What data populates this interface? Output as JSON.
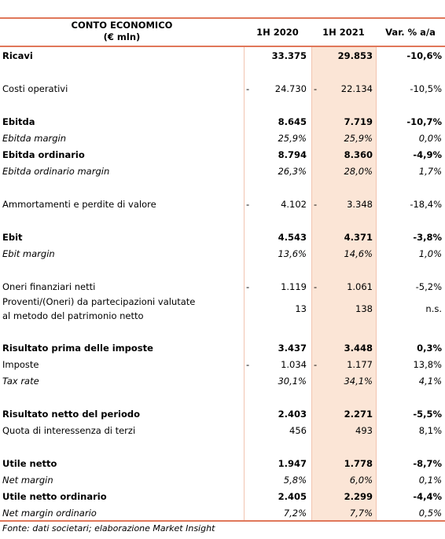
{
  "header": {
    "title_line1": "CONTO ECONOMICO",
    "title_line2": "(€ mln)",
    "col1": "1H 2020",
    "col2": "1H 2021",
    "col3": "Var. % a/a"
  },
  "rows": [
    {
      "label": "Ricavi",
      "v2020": "33.375",
      "v2021": "29.853",
      "var": "-10,6%",
      "style": "bold"
    },
    {
      "label": "Costi operativi",
      "s2020": "-",
      "v2020": "24.730",
      "s2021": "-",
      "v2021": "22.134",
      "var": "-10,5%",
      "style": "normal",
      "space_before": true
    },
    {
      "label": "Ebitda",
      "v2020": "8.645",
      "v2021": "7.719",
      "var": "-10,7%",
      "style": "bold",
      "space_before": true
    },
    {
      "label": "Ebitda margin",
      "v2020": "25,9%",
      "v2021": "25,9%",
      "var": "0,0%",
      "style": "italic"
    },
    {
      "label": "Ebitda ordinario",
      "v2020": "8.794",
      "v2021": "8.360",
      "var": "-4,9%",
      "style": "bold"
    },
    {
      "label": "Ebitda ordinario margin",
      "v2020": "26,3%",
      "v2021": "28,0%",
      "var": "1,7%",
      "style": "italic"
    },
    {
      "label": "Ammortamenti e perdite di valore",
      "s2020": "-",
      "v2020": "4.102",
      "s2021": "-",
      "v2021": "3.348",
      "var": "-18,4%",
      "style": "normal",
      "space_before": true
    },
    {
      "label": "Ebit",
      "v2020": "4.543",
      "v2021": "4.371",
      "var": "-3,8%",
      "style": "bold",
      "space_before": true
    },
    {
      "label": "Ebit margin",
      "v2020": "13,6%",
      "v2021": "14,6%",
      "var": "1,0%",
      "style": "italic"
    },
    {
      "label": "Oneri finanziari netti",
      "s2020": "-",
      "v2020": "1.119",
      "s2021": "-",
      "v2021": "1.061",
      "var": "-5,2%",
      "style": "normal",
      "space_before": true
    },
    {
      "label": "Proventi/(Oneri) da partecipazioni valutate",
      "label2": "al metodo del patrimonio netto",
      "v2020": "13",
      "v2021": "138",
      "var": "n.s.",
      "style": "normal"
    },
    {
      "label": "Risultato prima delle imposte",
      "v2020": "3.437",
      "v2021": "3.448",
      "var": "0,3%",
      "style": "bold",
      "space_before": true
    },
    {
      "label": "Imposte",
      "s2020": "-",
      "v2020": "1.034",
      "s2021": "-",
      "v2021": "1.177",
      "var": "13,8%",
      "style": "normal"
    },
    {
      "label": "Tax rate",
      "v2020": "30,1%",
      "v2021": "34,1%",
      "var": "4,1%",
      "style": "italic"
    },
    {
      "label": "Risultato netto del periodo",
      "v2020": "2.403",
      "v2021": "2.271",
      "var": "-5,5%",
      "style": "bold",
      "space_before": true
    },
    {
      "label": "Quota di interessenza di terzi",
      "v2020": "456",
      "v2021": "493",
      "var": "8,1%",
      "style": "normal"
    },
    {
      "label": "Utile netto",
      "v2020": "1.947",
      "v2021": "1.778",
      "var": "-8,7%",
      "style": "bold",
      "space_before": true
    },
    {
      "label": "Net margin",
      "v2020": "5,8%",
      "v2021": "6,0%",
      "var": "0,1%",
      "style": "italic"
    },
    {
      "label": "Utile netto ordinario",
      "v2020": "2.405",
      "v2021": "2.299",
      "var": "-4,4%",
      "style": "bold"
    },
    {
      "label": "Net margin ordinario",
      "v2020": "7,2%",
      "v2021": "7,7%",
      "var": "0,5%",
      "style": "italic"
    }
  ],
  "footer": "Fonte: dati societari; elaborazione Market Insight"
}
